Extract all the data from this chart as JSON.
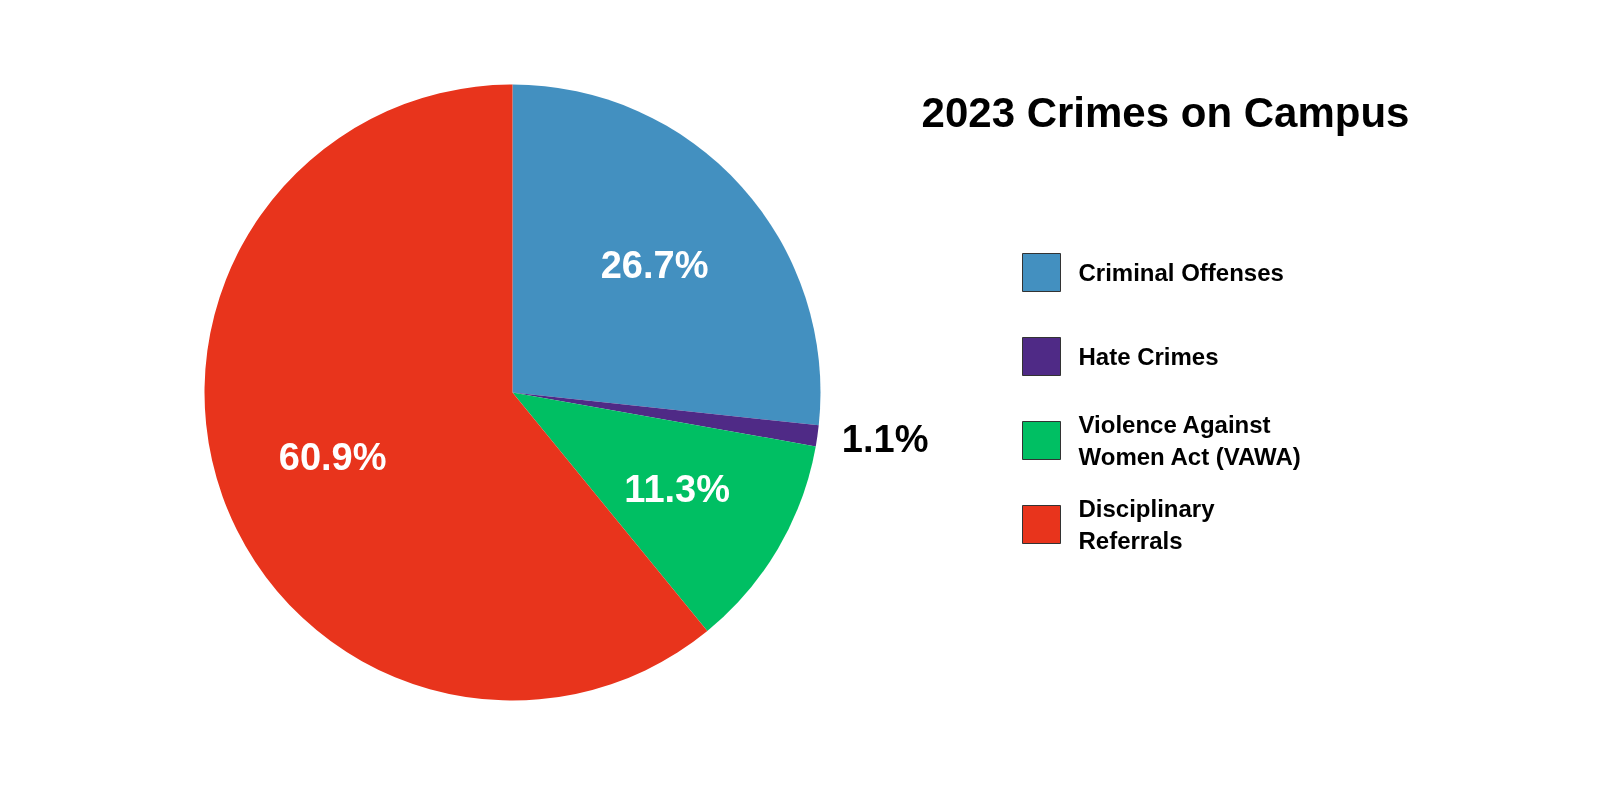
{
  "chart_data": {
    "type": "pie",
    "title": "2023 Crimes on Campus",
    "categories": [
      "Criminal Offenses",
      "Hate Crimes",
      "Violence Against Women Act (VAWA)",
      "Disciplinary Referrals"
    ],
    "values": [
      26.7,
      1.1,
      11.3,
      60.9
    ],
    "colors": [
      "#4390c0",
      "#4f2a86",
      "#00bf63",
      "#e8341c"
    ],
    "value_labels": [
      "26.7%",
      "1.1%",
      "11.3%",
      "60.9%"
    ],
    "legend": "right"
  }
}
